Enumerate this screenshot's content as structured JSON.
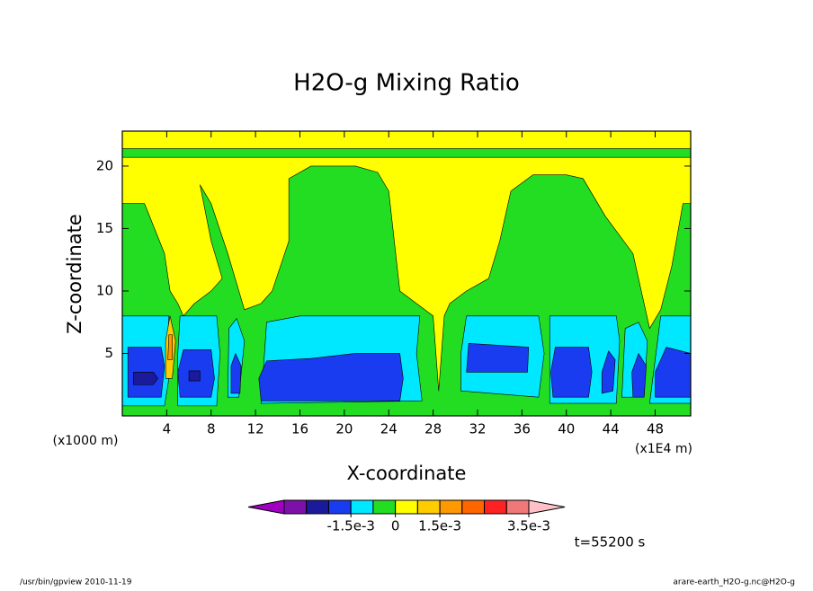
{
  "chart_data": {
    "type": "contour",
    "title": "H2O-g Mixing Ratio",
    "x_label": "X-coordinate",
    "y_label": "Z-coordinate",
    "x_unit": "(x1E4 m)",
    "y_unit": "(x1000 m)",
    "time_label": "t=55200 s",
    "footer_left": "/usr/bin/gpview  2010-11-19",
    "footer_right": "arare-earth_H2O-g.nc@H2O-g",
    "xlim": [
      0,
      51.2
    ],
    "ylim": [
      0,
      22.8
    ],
    "xticks": [
      4,
      8,
      12,
      16,
      20,
      24,
      28,
      32,
      36,
      40,
      44,
      48
    ],
    "yticks": [
      5,
      10,
      15,
      20
    ],
    "levels": [
      -0.00375,
      -0.003,
      -0.00225,
      -0.0015,
      -0.00075,
      0,
      0.00075,
      0.0015,
      0.002,
      0.0025,
      0.003,
      0.0035
    ],
    "colors": [
      "#a000c0",
      "#7d10a8",
      "#1a1a9a",
      "#1a3cf0",
      "#00e8ff",
      "#22dd22",
      "#ffff00",
      "#ffcc00",
      "#ff9900",
      "#ff6600",
      "#ff2222",
      "#f07878",
      "#ffc0c8"
    ],
    "colorbar_ticks": [
      {
        "value": -0.0015,
        "label": "-1.5e-3"
      },
      0,
      {
        "value": 0.0015,
        "label": "1.5e-3"
      },
      {
        "value": 0.0035,
        "label": "3.5e-3"
      }
    ],
    "background_value": 0.0004,
    "regions": [
      {
        "value": -0.0004,
        "x": [
          0,
          51.2,
          51.2,
          0
        ],
        "z": [
          20.7,
          20.7,
          21.4,
          21.4
        ]
      },
      {
        "value": -0.0004,
        "x": [
          0,
          51.2,
          51.2,
          50.5,
          49.5,
          48.5,
          47.5,
          47,
          46,
          43.5,
          41.5,
          40,
          37,
          35,
          34,
          33,
          31,
          29.5,
          29,
          28.5,
          28,
          26.5,
          25,
          24.5,
          24,
          23,
          21,
          17,
          15,
          15,
          13.5,
          12.5,
          11,
          10.5,
          9.5,
          8,
          7,
          8,
          9,
          8,
          6.5,
          5.5,
          5,
          4.3,
          3.8,
          2,
          0
        ],
        "z": [
          0,
          0,
          17,
          17,
          12,
          8.5,
          7,
          9,
          13,
          16,
          19,
          19.3,
          19.3,
          18,
          14,
          11,
          10,
          9,
          8,
          2,
          8,
          9,
          10,
          14,
          18,
          19.5,
          20,
          20,
          19,
          14,
          10,
          9,
          8.5,
          10,
          13,
          17,
          18.5,
          14,
          11,
          10,
          9,
          8,
          9,
          10,
          13,
          17,
          17
        ]
      },
      {
        "value": -0.0011,
        "x": [
          0,
          3.8,
          4.2,
          4,
          4.2,
          0
        ],
        "z": [
          0.8,
          0.8,
          3,
          5,
          8,
          8
        ]
      },
      {
        "value": -0.0011,
        "x": [
          5,
          8.5,
          8.8,
          8.5,
          5.2,
          5
        ],
        "z": [
          0.8,
          0.8,
          5,
          8,
          8,
          5
        ]
      },
      {
        "value": -0.0011,
        "x": [
          9.5,
          10.5,
          11,
          10.3,
          9.6
        ],
        "z": [
          1.5,
          1.5,
          6,
          7.8,
          7
        ]
      },
      {
        "value": -0.0011,
        "x": [
          12.5,
          27,
          26.5,
          26.8,
          16,
          13
        ],
        "z": [
          1,
          1.2,
          5,
          8,
          8,
          7.5
        ]
      },
      {
        "value": -0.0011,
        "x": [
          30.5,
          37.5,
          38,
          37.5,
          31,
          30.5
        ],
        "z": [
          2,
          1.5,
          5,
          8,
          8,
          5
        ]
      },
      {
        "value": -0.0011,
        "x": [
          38.5,
          44.5,
          44.8,
          44.5,
          38.5
        ],
        "z": [
          1,
          1,
          6,
          8,
          8
        ]
      },
      {
        "value": -0.0011,
        "x": [
          45,
          47,
          47.3,
          46.5,
          45.3
        ],
        "z": [
          1.5,
          1.5,
          6,
          7.5,
          7
        ]
      },
      {
        "value": -0.0011,
        "x": [
          47.5,
          51.2,
          51.2,
          48.5
        ],
        "z": [
          1,
          1,
          8,
          8
        ]
      },
      {
        "value": -0.0019,
        "x": [
          0.5,
          3.5,
          3.8,
          3.5,
          0.5
        ],
        "z": [
          1.5,
          1.5,
          4,
          5.5,
          5.5
        ]
      },
      {
        "value": -0.0019,
        "x": [
          5.2,
          8,
          8.3,
          8,
          5.5,
          5
        ],
        "z": [
          1.5,
          1.5,
          3,
          5.3,
          5.3,
          3.5
        ]
      },
      {
        "value": -0.0019,
        "x": [
          9.8,
          10.6,
          10.7,
          10.2,
          9.8
        ],
        "z": [
          1.8,
          1.8,
          4,
          5,
          4
        ]
      },
      {
        "value": -0.0019,
        "x": [
          12.5,
          25,
          25.3,
          25,
          21,
          17,
          13,
          12.3
        ],
        "z": [
          1.2,
          1.2,
          3,
          5,
          5,
          4.6,
          4.4,
          3
        ]
      },
      {
        "value": -0.0019,
        "x": [
          31,
          36.5,
          36.6,
          31.2
        ],
        "z": [
          3.5,
          3.5,
          5.5,
          5.8
        ]
      },
      {
        "value": -0.0019,
        "x": [
          38.8,
          42,
          42.3,
          42,
          39,
          38.6
        ],
        "z": [
          1.5,
          1.5,
          3.5,
          5.5,
          5.5,
          3.5
        ]
      },
      {
        "value": -0.0019,
        "x": [
          43.2,
          44.2,
          44.4,
          43.8,
          43.2
        ],
        "z": [
          1.8,
          2,
          4.5,
          5.2,
          3.5
        ]
      },
      {
        "value": -0.0019,
        "x": [
          46,
          47,
          47.2,
          46.5,
          45.9
        ],
        "z": [
          1.5,
          1.5,
          4,
          5,
          3.5
        ]
      },
      {
        "value": -0.0019,
        "x": [
          48,
          51.2,
          51.2,
          49,
          48
        ],
        "z": [
          1.5,
          1.5,
          5,
          5.5,
          3.5
        ]
      },
      {
        "value": -0.0026,
        "x": [
          1,
          2.8,
          3.2,
          2.8,
          1
        ],
        "z": [
          2.5,
          2.5,
          3,
          3.5,
          3.5
        ]
      },
      {
        "value": -0.0026,
        "x": [
          6,
          7,
          7,
          6
        ],
        "z": [
          2.8,
          2.8,
          3.6,
          3.6
        ]
      },
      {
        "value": 0.0011,
        "x": [
          3.9,
          4.5,
          4.8,
          4.3,
          3.9
        ],
        "z": [
          3,
          3,
          6,
          8,
          6
        ]
      },
      {
        "value": 0.00175,
        "x": [
          4.1,
          4.5,
          4.5,
          4.2
        ],
        "z": [
          4.5,
          4.5,
          6.5,
          6.5
        ]
      }
    ]
  }
}
